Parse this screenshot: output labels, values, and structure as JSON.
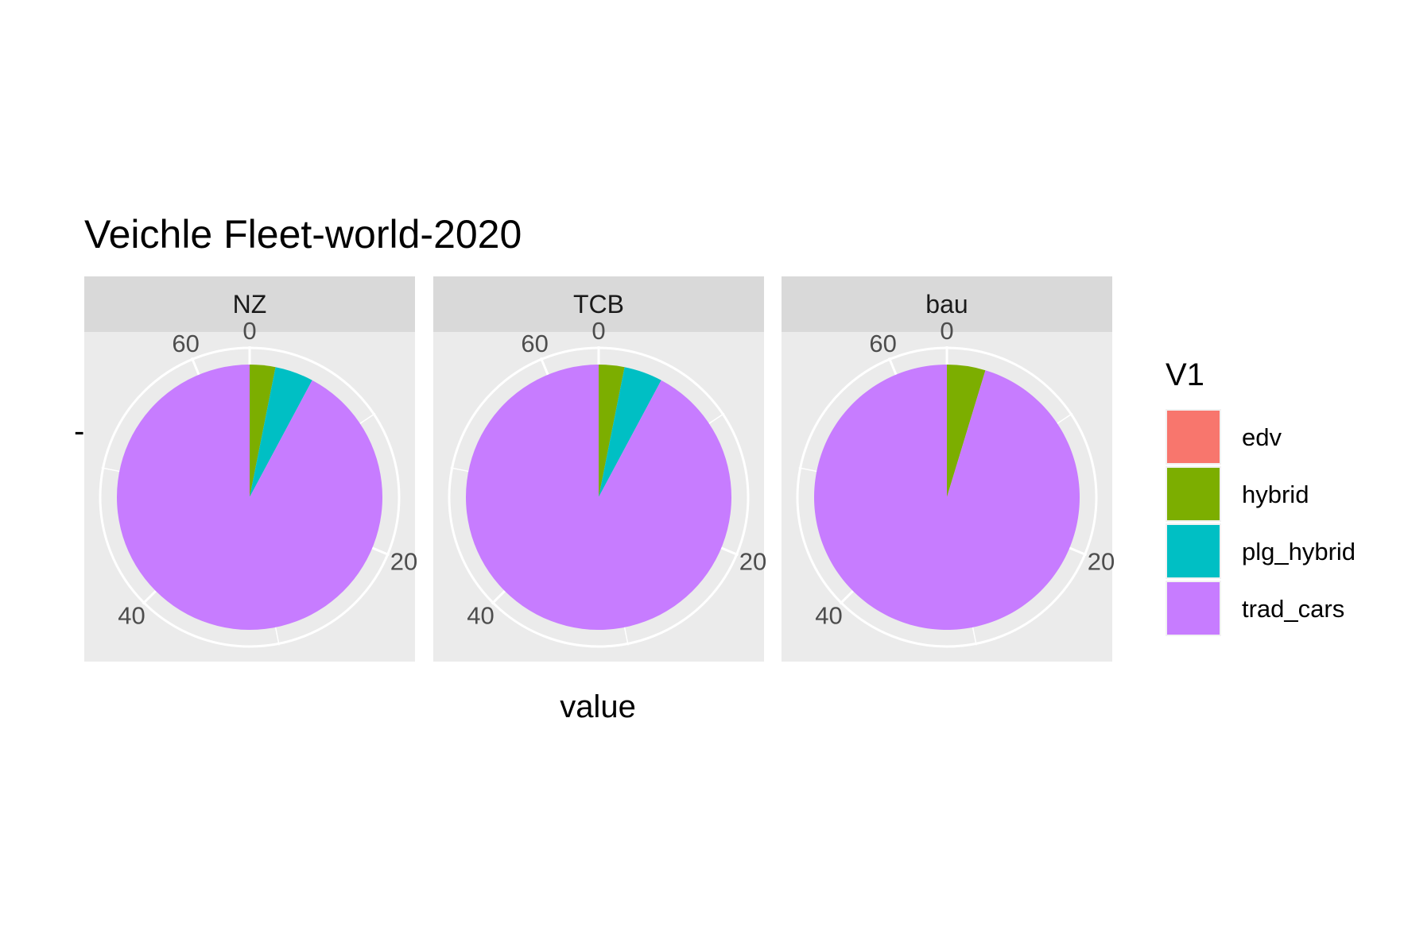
{
  "chart_data": {
    "type": "pie",
    "title": "Veichle Fleet-world-2020",
    "xlabel": "value",
    "ylabel": "-",
    "theta_ticks": [
      "0",
      "20",
      "40",
      "60"
    ],
    "theta_range": [
      0,
      64
    ],
    "panels": [
      {
        "name": "NZ",
        "values": {
          "edv": 0,
          "hybrid": 2,
          "plg_hybrid": 3,
          "trad_cars": 59
        }
      },
      {
        "name": "TCB",
        "values": {
          "edv": 0,
          "hybrid": 2,
          "plg_hybrid": 3,
          "trad_cars": 59
        }
      },
      {
        "name": "bau",
        "values": {
          "edv": 0,
          "hybrid": 3,
          "plg_hybrid": 0,
          "trad_cars": 61
        }
      }
    ],
    "legend": {
      "title": "V1",
      "position": "right",
      "items": [
        {
          "label": "edv",
          "color": "#F8766D"
        },
        {
          "label": "hybrid",
          "color": "#7CAE00"
        },
        {
          "label": "plg_hybrid",
          "color": "#00BFC4"
        },
        {
          "label": "trad_cars",
          "color": "#C77CFF"
        }
      ]
    }
  }
}
